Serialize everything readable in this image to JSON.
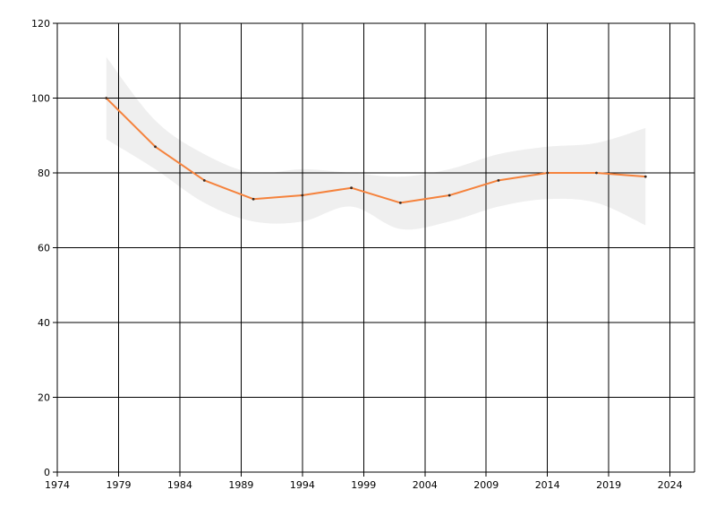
{
  "chart_data": {
    "type": "line",
    "title": "",
    "xlabel": "",
    "ylabel": "",
    "xlim": [
      1974,
      2026
    ],
    "ylim": [
      0,
      120
    ],
    "x_ticks": [
      1974,
      1979,
      1984,
      1989,
      1994,
      1999,
      2004,
      2009,
      2014,
      2019,
      2024
    ],
    "y_ticks": [
      0,
      20,
      40,
      60,
      80,
      100,
      120
    ],
    "grid": true,
    "legend": "none",
    "series": [
      {
        "color": "#f5823c",
        "x": [
          1978,
          1982,
          1986,
          1990,
          1994,
          1998,
          2002,
          2006,
          2010,
          2014,
          2018,
          2022
        ],
        "values": [
          100,
          87,
          78,
          73,
          74,
          76,
          72,
          74,
          78,
          80,
          80,
          79
        ]
      }
    ],
    "band": {
      "color": "#efefef",
      "x": [
        1978,
        1982,
        1986,
        1990,
        1994,
        1998,
        2002,
        2006,
        2010,
        2014,
        2018,
        2022
      ],
      "upper": [
        111,
        94,
        85,
        80,
        81,
        80,
        79,
        81,
        85,
        87,
        88,
        92
      ],
      "lower": [
        89,
        81,
        72,
        67,
        67,
        71,
        65,
        67,
        71,
        73,
        72,
        66
      ]
    }
  }
}
